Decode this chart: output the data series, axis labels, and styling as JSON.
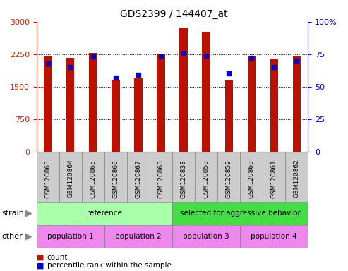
{
  "title": "GDS2399 / 144407_at",
  "samples": [
    "GSM120863",
    "GSM120864",
    "GSM120865",
    "GSM120866",
    "GSM120867",
    "GSM120868",
    "GSM120838",
    "GSM120858",
    "GSM120859",
    "GSM120860",
    "GSM120861",
    "GSM120862"
  ],
  "counts": [
    2190,
    2160,
    2280,
    1660,
    1700,
    2260,
    2870,
    2760,
    1640,
    2200,
    2140,
    2200
  ],
  "percentiles": [
    68,
    65,
    73,
    57,
    59,
    73,
    76,
    74,
    60,
    72,
    65,
    70
  ],
  "bar_color": "#BB1100",
  "dot_color": "#0000CC",
  "left_ylim": [
    0,
    3000
  ],
  "right_ylim": [
    0,
    100
  ],
  "left_yticks": [
    0,
    750,
    1500,
    2250,
    3000
  ],
  "right_yticks": [
    0,
    25,
    50,
    75,
    100
  ],
  "strain_groups": [
    {
      "label": "reference",
      "start": 0,
      "end": 6,
      "color": "#AAFFAA"
    },
    {
      "label": "selected for aggressive behavior",
      "start": 6,
      "end": 12,
      "color": "#44DD44"
    }
  ],
  "other_groups": [
    {
      "label": "population 1",
      "start": 0,
      "end": 3,
      "color": "#EE88EE"
    },
    {
      "label": "population 2",
      "start": 3,
      "end": 6,
      "color": "#EE88EE"
    },
    {
      "label": "population 3",
      "start": 6,
      "end": 9,
      "color": "#EE88EE"
    },
    {
      "label": "population 4",
      "start": 9,
      "end": 12,
      "color": "#EE88EE"
    }
  ],
  "legend_count_color": "#BB1100",
  "legend_pct_color": "#0000CC",
  "grid_color": "#000000",
  "tick_color_left": "#CC2200",
  "tick_color_right": "#0000CC",
  "bar_width": 0.35,
  "tick_box_color": "#CCCCCC",
  "tick_box_edge": "#888888"
}
